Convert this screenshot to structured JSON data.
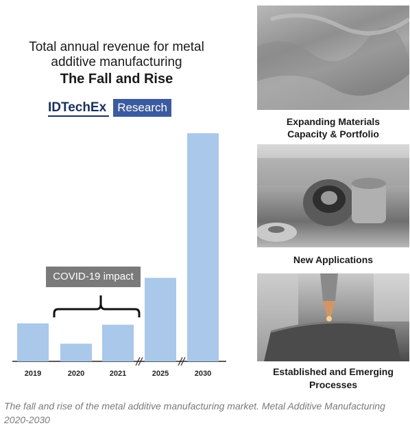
{
  "chart_data": {
    "type": "bar",
    "title": "Total annual revenue for metal additive manufacturing",
    "subtitle": "The Fall and Rise",
    "categories": [
      "2019",
      "2020",
      "2021",
      "2025",
      "2030"
    ],
    "values": [
      56,
      26,
      54,
      123,
      336
    ],
    "ylim": [
      0,
      340
    ],
    "xlabel": "",
    "ylabel": "",
    "axis_breaks_after": [
      "2021",
      "2025"
    ],
    "bar_color": "#a9c8ea",
    "annotation": {
      "label": "COVID-19 impact",
      "spans": [
        "2020",
        "2021"
      ]
    }
  },
  "title": {
    "line1": "Total annual revenue for metal",
    "line2": "additive manufacturing",
    "line3": "The Fall and Rise"
  },
  "brand": {
    "name": "IDTechEx",
    "tag": "Research"
  },
  "panels": [
    {
      "caption_lines": [
        "Expanding Materials",
        "Capacity & Portfolio"
      ]
    },
    {
      "caption_lines": [
        "New Applications"
      ]
    },
    {
      "caption_lines": [
        "Established and Emerging",
        "Processes"
      ]
    }
  ],
  "caption": "The fall and rise of the metal additive manufacturing market. Metal Additive Manufacturing 2020-2030"
}
